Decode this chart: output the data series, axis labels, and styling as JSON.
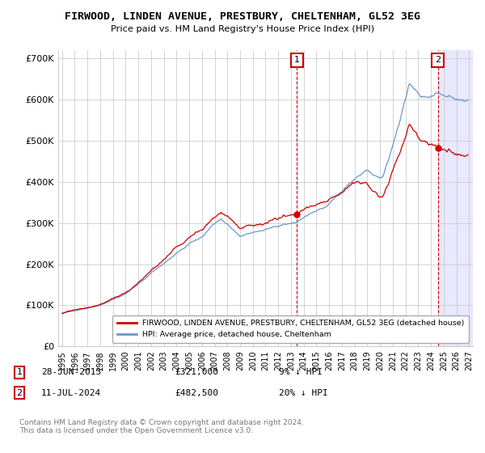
{
  "title": "FIRWOOD, LINDEN AVENUE, PRESTBURY, CHELTENHAM, GL52 3EG",
  "subtitle": "Price paid vs. HM Land Registry's House Price Index (HPI)",
  "ylim": [
    0,
    720000
  ],
  "yticks": [
    0,
    100000,
    200000,
    300000,
    400000,
    500000,
    600000,
    700000
  ],
  "ytick_labels": [
    "£0",
    "£100K",
    "£200K",
    "£300K",
    "£400K",
    "£500K",
    "£600K",
    "£700K"
  ],
  "x_start_year": 1995,
  "x_end_year": 2027,
  "purchase1_year": 2013,
  "purchase1_month": 6,
  "purchase1_price": 321000,
  "purchase1_date_str": "28-JUN-2013",
  "purchase1_pct": "9% ↓ HPI",
  "purchase2_year": 2024,
  "purchase2_month": 7,
  "purchase2_price": 482500,
  "purchase2_date_str": "11-JUL-2024",
  "purchase2_pct": "20% ↓ HPI",
  "line1_label": "FIRWOOD, LINDEN AVENUE, PRESTBURY, CHELTENHAM, GL52 3EG (detached house)",
  "line2_label": "HPI: Average price, detached house, Cheltenham",
  "line1_color": "#cc0000",
  "line2_color": "#6699cc",
  "grid_color": "#cccccc",
  "bg_color": "#ffffff",
  "hatch_color": "#e8e8ff",
  "footer": "Contains HM Land Registry data © Crown copyright and database right 2024.\nThis data is licensed under the Open Government Licence v3.0."
}
